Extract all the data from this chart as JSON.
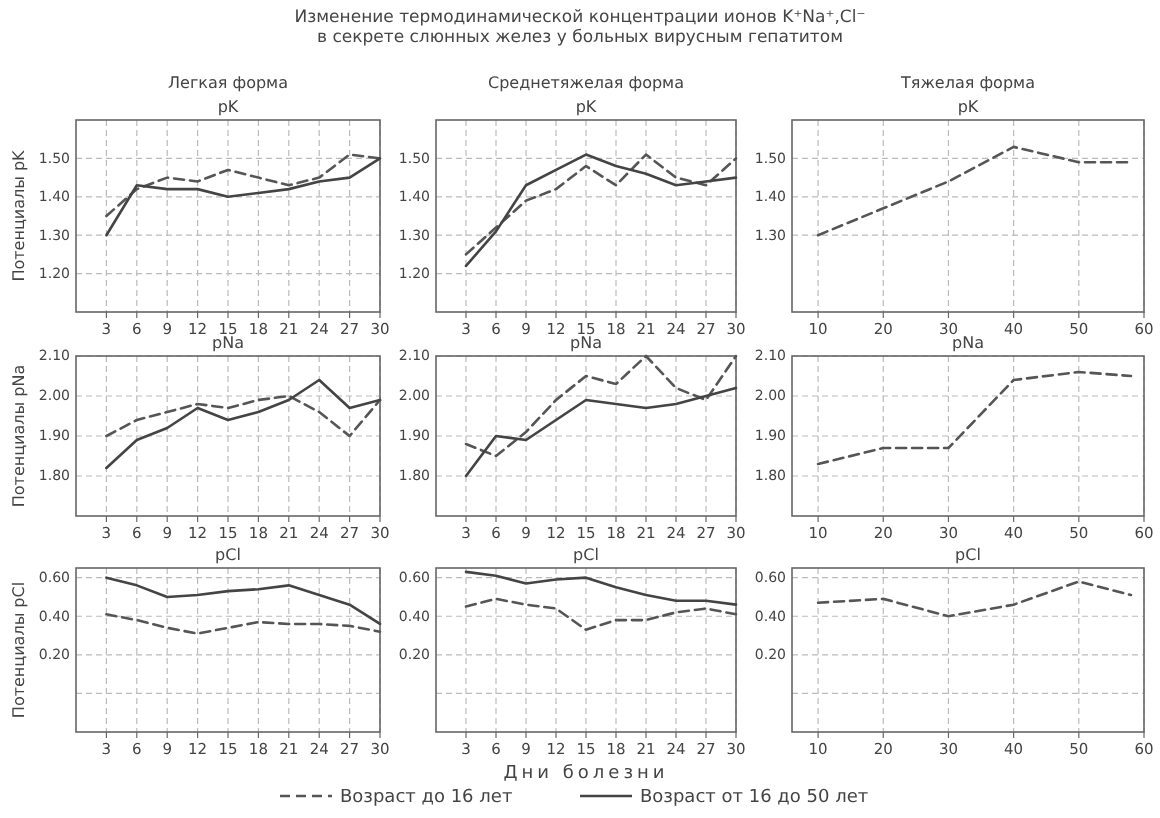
{
  "chart_data": [
    {
      "type": "line",
      "title": "pK",
      "subtitle": "Легкая форма",
      "ylabel": "Потенциалы pK",
      "legend": "bottom",
      "grid": true,
      "xlim": [
        0,
        30
      ],
      "xticks": [
        3,
        6,
        9,
        12,
        15,
        18,
        21,
        24,
        27,
        30
      ],
      "ylim": [
        1.1,
        1.6
      ],
      "yticks": [
        {
          "value": 1.2,
          "label": "1.20"
        },
        {
          "value": 1.3,
          "label": "1.30"
        },
        {
          "value": 1.4,
          "label": "1.40"
        },
        {
          "value": 1.5,
          "label": "1.50"
        }
      ],
      "x": [
        3,
        6,
        9,
        12,
        15,
        18,
        21,
        24,
        27,
        30
      ],
      "series": [
        {
          "name": "Возраст до 16 лет",
          "color": "#555555",
          "line_style": "dashed",
          "values": [
            1.35,
            1.42,
            1.45,
            1.44,
            1.47,
            1.45,
            1.43,
            1.45,
            1.51,
            1.5
          ]
        },
        {
          "name": "Возраст от 16 до 50 лет",
          "color": "#444444",
          "line_style": "solid",
          "values": [
            1.3,
            1.43,
            1.42,
            1.42,
            1.4,
            1.41,
            1.42,
            1.44,
            1.45,
            1.5
          ]
        }
      ]
    },
    {
      "type": "line",
      "title": "pK",
      "subtitle": "Среднетяжелая форма",
      "annotations": [
        "Изменение термодинамической концентрации ионов K⁺Na⁺,Cl⁻",
        "в секрете слюнных желез у больных вирусным гепатитом"
      ],
      "grid": true,
      "xlim": [
        0,
        30
      ],
      "xticks": [
        3,
        6,
        9,
        12,
        15,
        18,
        21,
        24,
        27,
        30
      ],
      "ylim": [
        1.1,
        1.6
      ],
      "yticks": [
        {
          "value": 1.2,
          "label": "1.20"
        },
        {
          "value": 1.3,
          "label": "1.30"
        },
        {
          "value": 1.4,
          "label": "1.40"
        },
        {
          "value": 1.5,
          "label": "1.50"
        }
      ],
      "x": [
        3,
        6,
        9,
        12,
        15,
        18,
        21,
        24,
        27,
        30
      ],
      "series": [
        {
          "color": "#555555",
          "line_style": "dashed",
          "values": [
            1.25,
            1.32,
            1.39,
            1.42,
            1.48,
            1.43,
            1.51,
            1.45,
            1.43,
            1.5
          ]
        },
        {
          "color": "#444444",
          "line_style": "solid",
          "values": [
            1.22,
            1.31,
            1.43,
            1.47,
            1.51,
            1.48,
            1.46,
            1.43,
            1.44,
            1.45
          ]
        }
      ]
    },
    {
      "type": "line",
      "title": "pK",
      "subtitle": "Тяжелая форма",
      "grid": true,
      "xlim": [
        6,
        60
      ],
      "xticks": [
        10,
        20,
        30,
        40,
        50,
        60
      ],
      "ylim": [
        1.1,
        1.6
      ],
      "yticks": [
        {
          "value": 1.3,
          "label": "1.30"
        },
        {
          "value": 1.4,
          "label": "1.40"
        },
        {
          "value": 1.5,
          "label": "1.50"
        }
      ],
      "x": [
        10,
        20,
        30,
        40,
        50,
        58
      ],
      "series": [
        {
          "color": "#555555",
          "line_style": "dashed",
          "values": [
            1.3,
            1.37,
            1.44,
            1.53,
            1.49,
            1.49
          ]
        }
      ]
    },
    {
      "type": "line",
      "title": "pNa",
      "ylabel": "Потенциалы pNa",
      "grid": true,
      "xlim": [
        0,
        30
      ],
      "xticks": [
        3,
        6,
        9,
        12,
        15,
        18,
        21,
        24,
        27,
        30
      ],
      "ylim": [
        1.7,
        2.1
      ],
      "yticks": [
        {
          "value": 1.8,
          "label": "1.80"
        },
        {
          "value": 1.9,
          "label": "1.90"
        },
        {
          "value": 2.0,
          "label": "2.00"
        },
        {
          "value": 2.1,
          "label": "2.10"
        }
      ],
      "x": [
        3,
        6,
        9,
        12,
        15,
        18,
        21,
        24,
        27,
        30
      ],
      "series": [
        {
          "color": "#555555",
          "line_style": "dashed",
          "values": [
            1.9,
            1.94,
            1.96,
            1.98,
            1.97,
            1.99,
            2.0,
            1.96,
            1.9,
            1.99
          ]
        },
        {
          "color": "#444444",
          "line_style": "solid",
          "values": [
            1.82,
            1.89,
            1.92,
            1.97,
            1.94,
            1.96,
            1.99,
            2.04,
            1.97,
            1.99
          ]
        }
      ]
    },
    {
      "type": "line",
      "title": "pNa",
      "grid": true,
      "xlim": [
        0,
        30
      ],
      "xticks": [
        3,
        6,
        9,
        12,
        15,
        18,
        21,
        24,
        27,
        30
      ],
      "ylim": [
        1.7,
        2.1
      ],
      "yticks": [
        {
          "value": 1.8,
          "label": "1.80"
        },
        {
          "value": 1.9,
          "label": "1.90"
        },
        {
          "value": 2.0,
          "label": "2.00"
        },
        {
          "value": 2.1,
          "label": "2.10"
        }
      ],
      "x": [
        3,
        6,
        9,
        12,
        15,
        18,
        21,
        24,
        27,
        30
      ],
      "series": [
        {
          "color": "#555555",
          "line_style": "dashed",
          "values": [
            1.88,
            1.85,
            1.91,
            1.99,
            2.05,
            2.03,
            2.1,
            2.02,
            1.99,
            2.1
          ]
        },
        {
          "color": "#444444",
          "line_style": "solid",
          "values": [
            1.8,
            1.9,
            1.89,
            1.94,
            1.99,
            1.98,
            1.97,
            1.98,
            2.0,
            2.02
          ]
        }
      ]
    },
    {
      "type": "line",
      "title": "pNa",
      "grid": true,
      "xlim": [
        6,
        60
      ],
      "xticks": [
        10,
        20,
        30,
        40,
        50,
        60
      ],
      "ylim": [
        1.7,
        2.1
      ],
      "yticks": [
        {
          "value": 1.8,
          "label": "1.80"
        },
        {
          "value": 1.9,
          "label": "1.90"
        },
        {
          "value": 2.0,
          "label": "2.00"
        },
        {
          "value": 2.1,
          "label": "2.10"
        }
      ],
      "x": [
        10,
        20,
        30,
        40,
        50,
        58
      ],
      "series": [
        {
          "color": "#555555",
          "line_style": "dashed",
          "values": [
            1.83,
            1.87,
            1.87,
            2.04,
            2.06,
            2.05
          ]
        }
      ]
    },
    {
      "type": "line",
      "title": "pCl",
      "ylabel": "Потенциалы pCl",
      "grid": true,
      "xlim": [
        0,
        30
      ],
      "xticks": [
        3,
        6,
        9,
        12,
        15,
        18,
        21,
        24,
        27,
        30
      ],
      "ylim": [
        -0.2,
        0.65
      ],
      "yticks": [
        {
          "value": 0,
          "label": null
        },
        {
          "value": 0.2,
          "label": "0.20"
        },
        {
          "value": 0.4,
          "label": "0.40"
        },
        {
          "value": 0.6,
          "label": "0.60"
        }
      ],
      "x": [
        3,
        6,
        9,
        12,
        15,
        18,
        21,
        24,
        27,
        30
      ],
      "series": [
        {
          "color": "#555555",
          "line_style": "dashed",
          "values": [
            0.41,
            0.38,
            0.34,
            0.31,
            0.34,
            0.37,
            0.36,
            0.36,
            0.35,
            0.32
          ]
        },
        {
          "color": "#444444",
          "line_style": "solid",
          "values": [
            0.6,
            0.56,
            0.5,
            0.51,
            0.53,
            0.54,
            0.56,
            0.51,
            0.46,
            0.36
          ]
        }
      ]
    },
    {
      "type": "line",
      "title": "pCl",
      "xlabel": "Дни болезни",
      "grid": true,
      "xlim": [
        0,
        30
      ],
      "xticks": [
        3,
        6,
        9,
        12,
        15,
        18,
        21,
        24,
        27,
        30
      ],
      "ylim": [
        -0.2,
        0.65
      ],
      "yticks": [
        {
          "value": 0,
          "label": null
        },
        {
          "value": 0.2,
          "label": "0.20"
        },
        {
          "value": 0.4,
          "label": "0.40"
        },
        {
          "value": 0.6,
          "label": "0.60"
        }
      ],
      "x": [
        3,
        6,
        9,
        12,
        15,
        18,
        21,
        24,
        27,
        30
      ],
      "series": [
        {
          "color": "#555555",
          "line_style": "dashed",
          "values": [
            0.45,
            0.49,
            0.46,
            0.44,
            0.33,
            0.38,
            0.38,
            0.42,
            0.44,
            0.41
          ]
        },
        {
          "color": "#444444",
          "line_style": "solid",
          "values": [
            0.63,
            0.61,
            0.57,
            0.59,
            0.6,
            0.55,
            0.51,
            0.48,
            0.48,
            0.46
          ]
        }
      ]
    },
    {
      "type": "line",
      "title": "pCl",
      "grid": true,
      "xlim": [
        6,
        60
      ],
      "xticks": [
        10,
        20,
        30,
        40,
        50,
        60
      ],
      "ylim": [
        -0.2,
        0.65
      ],
      "yticks": [
        {
          "value": 0,
          "label": null
        },
        {
          "value": 0.2,
          "label": "0.20"
        },
        {
          "value": 0.4,
          "label": "0.40"
        },
        {
          "value": 0.6,
          "label": "0.60"
        }
      ],
      "x": [
        10,
        20,
        30,
        40,
        50,
        58
      ],
      "series": [
        {
          "color": "#555555",
          "line_style": "dashed",
          "values": [
            0.47,
            0.49,
            0.4,
            0.46,
            0.58,
            0.51
          ]
        }
      ]
    }
  ]
}
